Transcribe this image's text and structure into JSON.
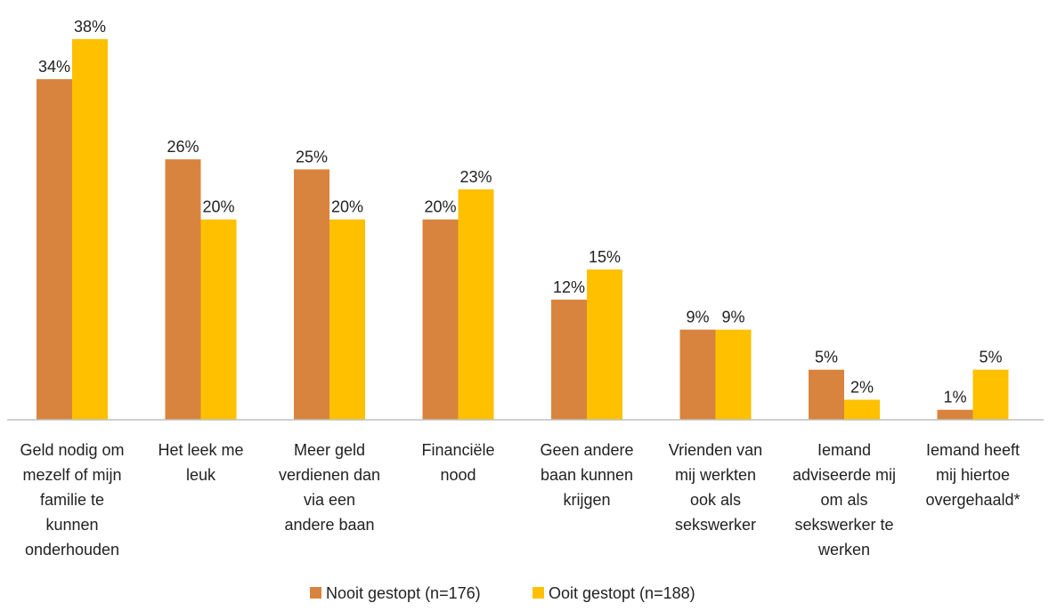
{
  "chart_data": {
    "type": "bar",
    "categories": [
      [
        "Geld nodig om",
        "mezelf of mijn",
        "familie te",
        "kunnen",
        "onderhouden"
      ],
      [
        "Het leek me",
        "leuk"
      ],
      [
        "Meer geld",
        "verdienen dan",
        "via een",
        "andere baan"
      ],
      [
        "Financiële",
        "nood"
      ],
      [
        "Geen andere",
        "baan kunnen",
        "krijgen"
      ],
      [
        "Vrienden van",
        "mij werkten",
        "ook als",
        "sekswerker"
      ],
      [
        "Iemand",
        "adviseerde mij",
        "om als",
        "sekswerker te",
        "werken"
      ],
      [
        "Iemand heeft",
        "mij hiertoe",
        "overgehaald*"
      ]
    ],
    "series": [
      {
        "name": "Nooit gestopt (n=176)",
        "color": "#D9843E",
        "values": [
          34,
          26,
          25,
          20,
          12,
          9,
          5,
          1
        ]
      },
      {
        "name": "Ooit gestopt (n=188)",
        "color": "#FFC000",
        "values": [
          38,
          20,
          20,
          23,
          15,
          9,
          2,
          5
        ]
      }
    ],
    "value_suffix": "%",
    "ylim": [
      0,
      38
    ],
    "grid": false,
    "legend_position": "bottom-center"
  }
}
